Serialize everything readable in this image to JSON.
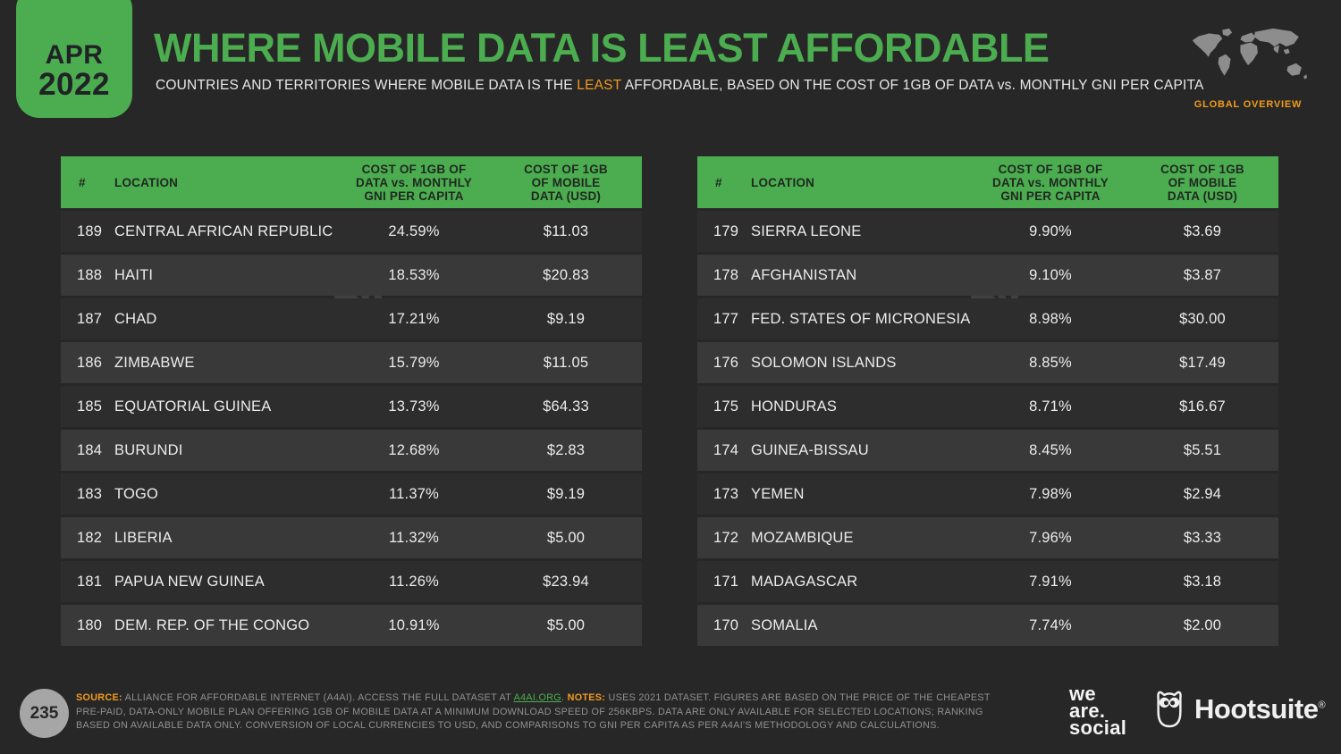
{
  "badge": {
    "month": "APR",
    "year": "2022"
  },
  "header": {
    "title": "WHERE MOBILE DATA IS LEAST AFFORDABLE",
    "subtitle": {
      "before": "COUNTRIES AND TERRITORIES WHERE MOBILE DATA IS THE ",
      "highlight": "LEAST",
      "after": " AFFORDABLE, BASED ON THE COST OF 1GB OF DATA vs. MONTHLY GNI PER CAPITA"
    },
    "overview_label": "GLOBAL OVERVIEW",
    "map_icon": "world-map-icon"
  },
  "table_header": {
    "rank": "#",
    "location": "LOCATION",
    "pct": "COST OF 1GB OF\nDATA vs. MONTHLY\nGNI PER CAPITA",
    "usd": "COST OF 1GB\nOF MOBILE\nDATA (USD)"
  },
  "chart_data": {
    "type": "table",
    "title": "WHERE MOBILE DATA IS LEAST AFFORDABLE",
    "subtitle": "Countries and territories where mobile data is the least affordable, based on the cost of 1GB of data vs. monthly GNI per capita",
    "columns": [
      "Rank",
      "Location",
      "Cost of 1GB of data vs. monthly GNI per capita",
      "Cost of 1GB of mobile data (USD)"
    ],
    "layout": "two side-by-side tables: ranks 189-180 left, ranks 179-170 right",
    "rows": [
      [
        189,
        "CENTRAL AFRICAN REPUBLIC",
        "24.59%",
        "$11.03"
      ],
      [
        188,
        "HAITI",
        "18.53%",
        "$20.83"
      ],
      [
        187,
        "CHAD",
        "17.21%",
        "$9.19"
      ],
      [
        186,
        "ZIMBABWE",
        "15.79%",
        "$11.05"
      ],
      [
        185,
        "EQUATORIAL GUINEA",
        "13.73%",
        "$64.33"
      ],
      [
        184,
        "BURUNDI",
        "12.68%",
        "$2.83"
      ],
      [
        183,
        "TOGO",
        "11.37%",
        "$9.19"
      ],
      [
        182,
        "LIBERIA",
        "11.32%",
        "$5.00"
      ],
      [
        181,
        "PAPUA NEW GUINEA",
        "11.26%",
        "$23.94"
      ],
      [
        180,
        "DEM. REP. OF THE CONGO",
        "10.91%",
        "$5.00"
      ],
      [
        179,
        "SIERRA LEONE",
        "9.90%",
        "$3.69"
      ],
      [
        178,
        "AFGHANISTAN",
        "9.10%",
        "$3.87"
      ],
      [
        177,
        "FED. STATES OF MICRONESIA",
        "8.98%",
        "$30.00"
      ],
      [
        176,
        "SOLOMON ISLANDS",
        "8.85%",
        "$17.49"
      ],
      [
        175,
        "HONDURAS",
        "8.71%",
        "$16.67"
      ],
      [
        174,
        "GUINEA-BISSAU",
        "8.45%",
        "$5.51"
      ],
      [
        173,
        "YEMEN",
        "7.98%",
        "$2.94"
      ],
      [
        172,
        "MOZAMBIQUE",
        "7.96%",
        "$3.33"
      ],
      [
        171,
        "MADAGASCAR",
        "7.91%",
        "$3.18"
      ],
      [
        170,
        "SOMALIA",
        "7.74%",
        "$2.00"
      ]
    ]
  },
  "footer": {
    "page_number": "235",
    "source_label": "SOURCE:",
    "source_text": " ALLIANCE FOR AFFORDABLE INTERNET (A4AI). ACCESS THE FULL DATASET AT ",
    "source_link": "A4AI.ORG",
    "source_link_suffix": ". ",
    "notes_label": "NOTES:",
    "notes_text": " USES 2021 DATASET. FIGURES ARE BASED ON THE PRICE OF THE CHEAPEST PRE-PAID, DATA-ONLY MOBILE PLAN OFFERING 1GB OF MOBILE DATA AT A MINIMUM DOWNLOAD SPEED OF 256KBPS. DATA ARE ONLY AVAILABLE FOR SELECTED LOCATIONS; RANKING BASED ON AVAILABLE DATA ONLY. CONVERSION OF LOCAL CURRENCIES TO USD, AND COMPARISONS TO GNI PER CAPITA AS PER A4AI'S METHODOLOGY AND CALCULATIONS.",
    "brand_we_are_social": {
      "line1": "we",
      "line2": "are.",
      "line3": "social"
    },
    "brand_hootsuite": "Hootsuite",
    "registered_mark": "®"
  },
  "colors": {
    "background": "#272727",
    "green_accent": "#4bad4f",
    "orange_accent": "#f29b1d",
    "row": "#2d2d2d",
    "row_alt": "#393939",
    "header_text": "#212822",
    "body_text": "#ececec",
    "footnote_text": "#919191",
    "page_badge": "#a6a6a6",
    "map_gray": "#8d8d8d"
  }
}
